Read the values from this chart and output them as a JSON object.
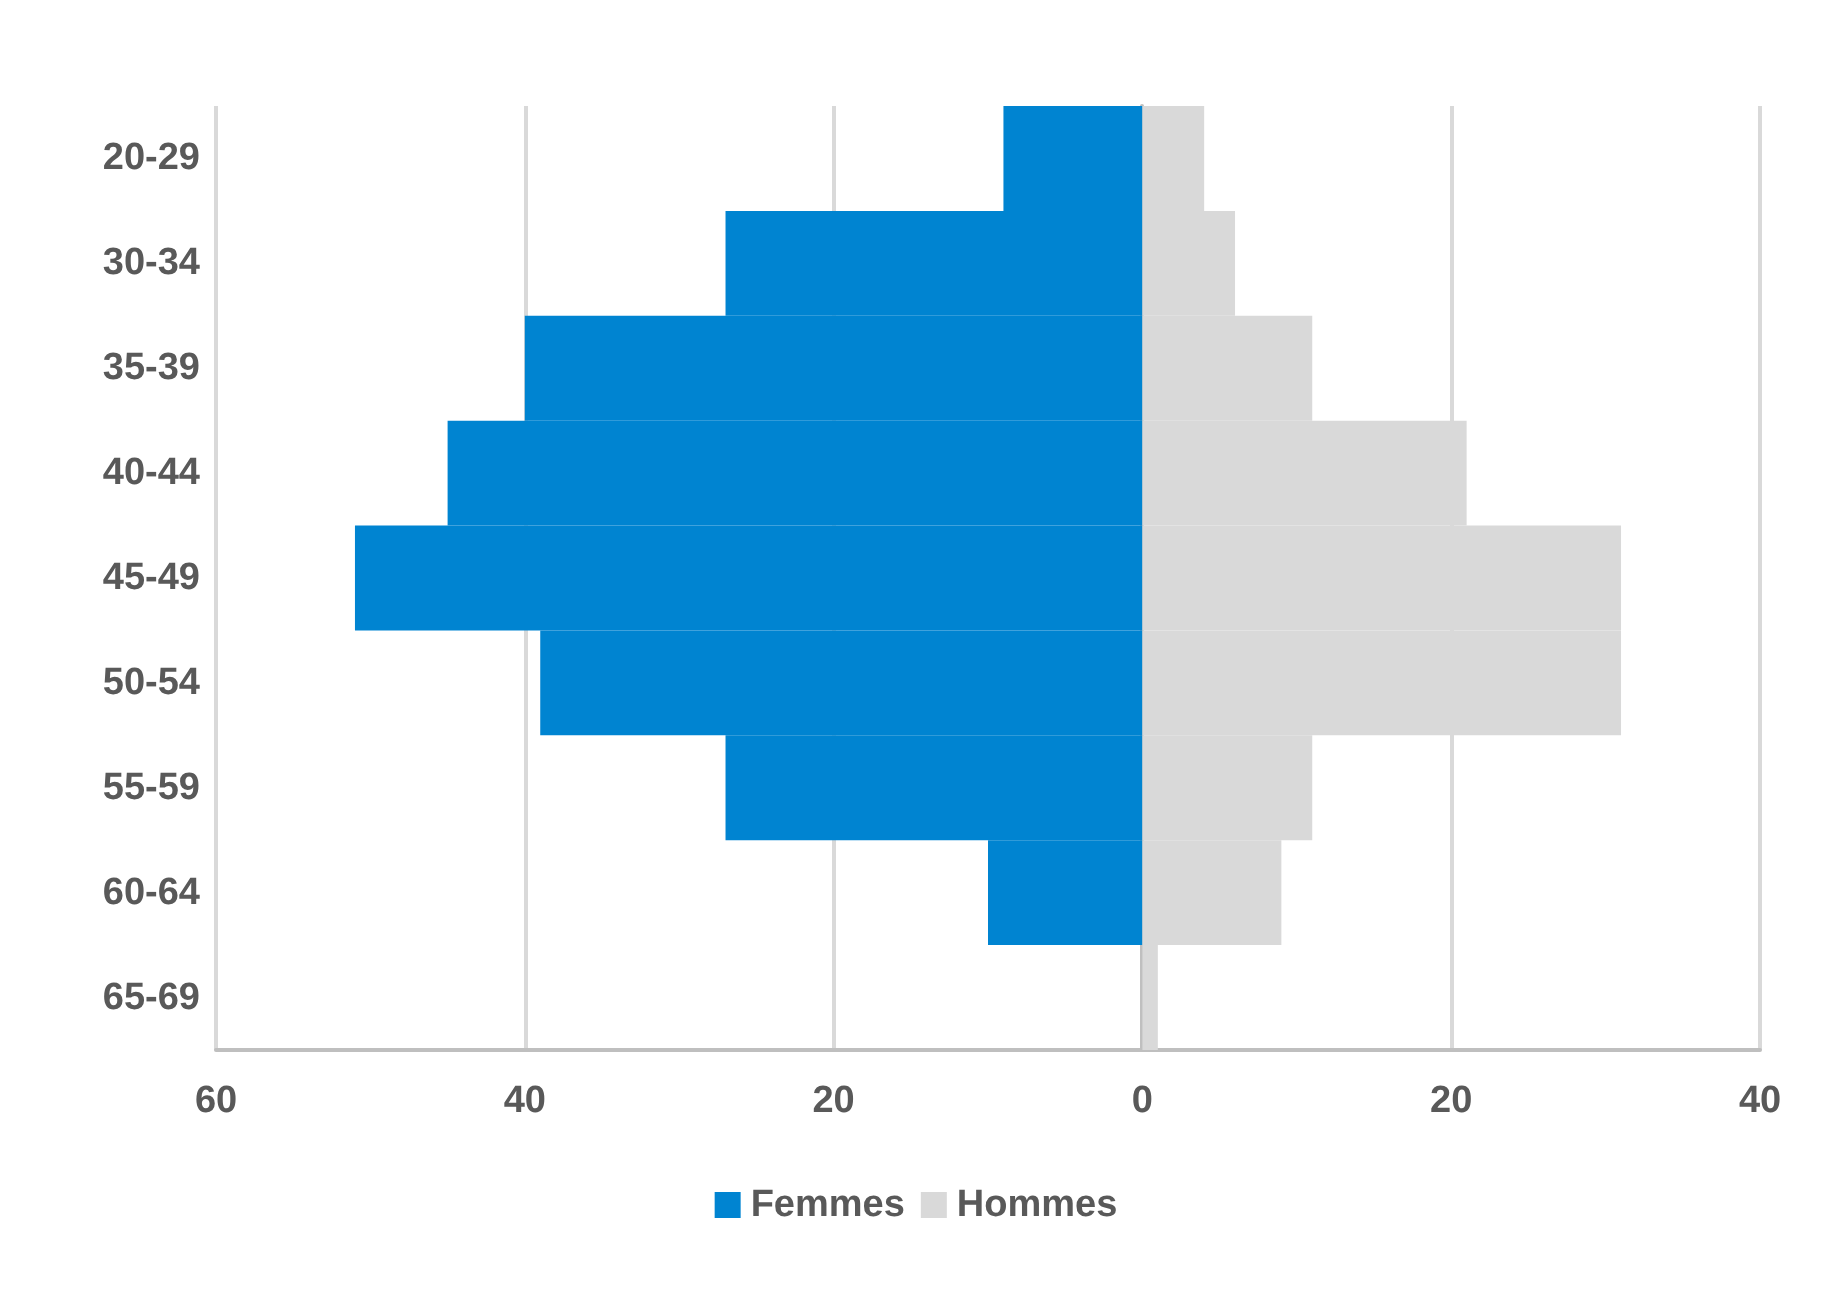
{
  "chart_data": {
    "type": "bar",
    "orientation": "horizontal",
    "categories": [
      "20-29",
      "30-34",
      "35-39",
      "40-44",
      "45-49",
      "50-54",
      "55-59",
      "60-64",
      "65-69"
    ],
    "series": [
      {
        "name": "Femmes",
        "color": "#0084d1",
        "values": [
          -9,
          -27,
          -40,
          -45,
          -51,
          -39,
          -27,
          -10,
          0
        ]
      },
      {
        "name": "Hommes",
        "color": "#d9d9d9",
        "values": [
          4,
          6,
          11,
          21,
          31,
          31,
          11,
          9,
          1
        ]
      }
    ],
    "xlim": [
      -60,
      40
    ],
    "xticks": [
      {
        "value": -60,
        "label": "60"
      },
      {
        "value": -40,
        "label": "40"
      },
      {
        "value": -20,
        "label": "20"
      },
      0,
      20,
      40
    ],
    "grid": "x",
    "legend": "bottom",
    "stacked": true
  }
}
